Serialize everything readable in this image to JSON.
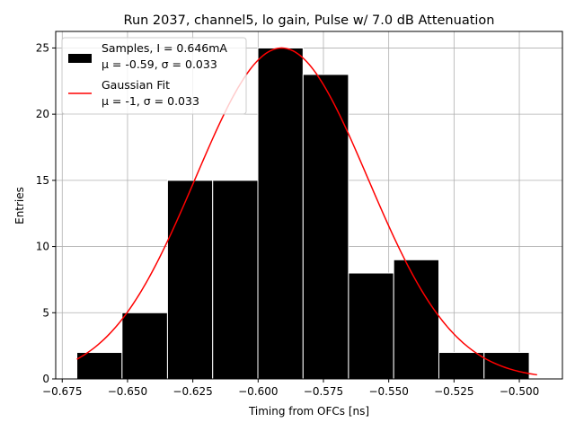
{
  "chart_data": {
    "type": "bar",
    "title": "Run 2037, channel5, lo gain, Pulse w/ 7.0 dB Attenuation",
    "xlabel": "Timing from OFCs [ns]",
    "ylabel": "Entries",
    "xlim": [
      -0.6775,
      -0.4835
    ],
    "ylim": [
      0,
      26.25
    ],
    "grid": true,
    "xticks": [
      -0.675,
      -0.65,
      -0.625,
      -0.6,
      -0.575,
      -0.55,
      -0.525,
      -0.5
    ],
    "xtick_labels": [
      "−0.675",
      "−0.650",
      "−0.625",
      "−0.600",
      "−0.575",
      "−0.550",
      "−0.525",
      "−0.500"
    ],
    "yticks": [
      0,
      5,
      10,
      15,
      20,
      25
    ],
    "ytick_labels": [
      "0",
      "5",
      "10",
      "15",
      "20",
      "25"
    ],
    "bin_edges": [
      -0.6694,
      -0.6521,
      -0.6347,
      -0.6174,
      -0.6001,
      -0.5828,
      -0.5654,
      -0.5481,
      -0.5308,
      -0.5135,
      -0.4962
    ],
    "counts": [
      2,
      5,
      15,
      15,
      25,
      23,
      8,
      9,
      2,
      2
    ],
    "fit": {
      "mu": -0.591,
      "sigma": 0.033,
      "amplitude": 25,
      "x_range": [
        -0.6694,
        -0.4932
      ]
    },
    "colors": {
      "bars": "#000000",
      "bar_edge": "#ffffff",
      "fit": "#ff0000",
      "grid": "#b0b0b0"
    },
    "legend": {
      "placement": "upper-left",
      "entries": [
        {
          "kind": "patch",
          "line1": "Samples, I = 0.646mA",
          "line2": "μ = -0.59, σ = 0.033"
        },
        {
          "kind": "line",
          "line1": "Gaussian Fit",
          "line2": "μ = -1, σ = 0.033"
        }
      ]
    }
  }
}
